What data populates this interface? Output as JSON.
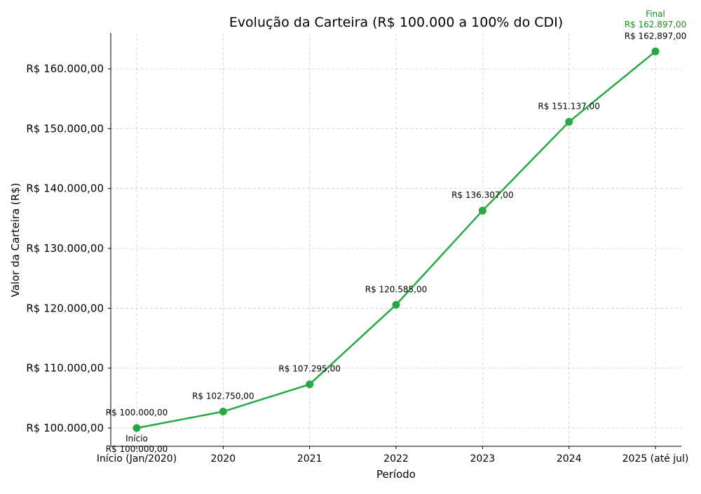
{
  "chart_data": {
    "type": "line",
    "title": "Evolução da Carteira (R$ 100.000 a 100% do CDI)",
    "xlabel": "Período",
    "ylabel": "Valor da Carteira (R$)",
    "categories": [
      "Início (Jan/2020)",
      "2020",
      "2021",
      "2022",
      "2023",
      "2024",
      "2025 (até jul)"
    ],
    "values": [
      100000,
      102750,
      107295,
      120585,
      136307,
      151137,
      162897
    ],
    "data_labels": [
      "R$ 100.000,00",
      "R$ 102.750,00",
      "R$ 107.295,00",
      "R$ 120.585,00",
      "R$ 136.307,00",
      "R$ 151.137,00",
      "R$ 162.897,00"
    ],
    "yticks": [
      100000,
      110000,
      120000,
      130000,
      140000,
      150000,
      160000
    ],
    "ytick_labels": [
      "R$ 100.000,00",
      "R$ 110.000,00",
      "R$ 120.000,00",
      "R$ 130.000,00",
      "R$ 140.000,00",
      "R$ 150.000,00",
      "R$ 160.000,00"
    ],
    "ylim": [
      96950,
      165980
    ],
    "grid": true,
    "line_color": "#28a745",
    "annotations": {
      "start": {
        "label": "Início",
        "value": "R$ 100.000,00",
        "color": "#000000"
      },
      "end": {
        "label": "Final",
        "value": "R$ 162.897,00",
        "color": "#1a8f1a"
      }
    }
  }
}
